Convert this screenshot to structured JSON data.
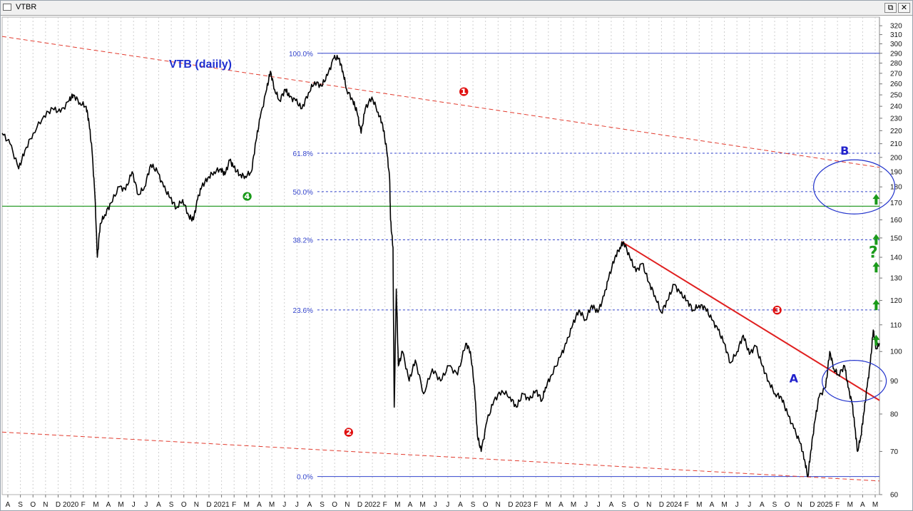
{
  "window": {
    "title": "VTBR",
    "restore_glyph": "⧉",
    "close_glyph": "✕"
  },
  "chart_data": {
    "type": "line",
    "title": "VTB (daiily)",
    "scale": "log",
    "ylim": [
      60,
      330
    ],
    "y_ticks": [
      60,
      70,
      80,
      90,
      100,
      110,
      120,
      130,
      140,
      150,
      160,
      170,
      180,
      190,
      200,
      210,
      220,
      230,
      240,
      250,
      260,
      270,
      280,
      290,
      300,
      310,
      320
    ],
    "x_ticks": [
      "A",
      "S",
      "O",
      "N",
      "D",
      "2020",
      "F",
      "M",
      "A",
      "M",
      "J",
      "J",
      "A",
      "S",
      "O",
      "N",
      "D",
      "2021",
      "F",
      "M",
      "A",
      "M",
      "J",
      "J",
      "A",
      "S",
      "O",
      "N",
      "D",
      "2022",
      "F",
      "M",
      "A",
      "M",
      "J",
      "J",
      "A",
      "S",
      "O",
      "N",
      "D",
      "2023",
      "F",
      "M",
      "A",
      "M",
      "J",
      "J",
      "A",
      "S",
      "O",
      "N",
      "D",
      "2024",
      "F",
      "M",
      "A",
      "M",
      "J",
      "J",
      "A",
      "S",
      "O",
      "N",
      "D",
      "2025",
      "F",
      "M",
      "A",
      "M"
    ],
    "x_range": [
      "2019-08-01",
      "2025-05-20"
    ],
    "grid": true,
    "series": [
      {
        "style": "price",
        "color": "#000000",
        "points": [
          [
            "2019-08-01",
            218
          ],
          [
            "2019-08-20",
            210
          ],
          [
            "2019-09-10",
            192
          ],
          [
            "2019-09-25",
            205
          ],
          [
            "2019-10-15",
            218
          ],
          [
            "2019-11-10",
            232
          ],
          [
            "2019-12-01",
            238
          ],
          [
            "2019-12-20",
            235
          ],
          [
            "2020-01-10",
            245
          ],
          [
            "2020-01-20",
            250
          ],
          [
            "2020-02-05",
            243
          ],
          [
            "2020-02-20",
            240
          ],
          [
            "2020-02-27",
            226
          ],
          [
            "2020-03-05",
            205
          ],
          [
            "2020-03-12",
            175
          ],
          [
            "2020-03-18",
            140
          ],
          [
            "2020-03-25",
            158
          ],
          [
            "2020-04-05",
            163
          ],
          [
            "2020-04-20",
            170
          ],
          [
            "2020-05-10",
            180
          ],
          [
            "2020-05-25",
            178
          ],
          [
            "2020-06-10",
            190
          ],
          [
            "2020-06-25",
            175
          ],
          [
            "2020-07-10",
            180
          ],
          [
            "2020-07-25",
            195
          ],
          [
            "2020-08-10",
            190
          ],
          [
            "2020-08-25",
            180
          ],
          [
            "2020-09-10",
            173
          ],
          [
            "2020-09-25",
            167
          ],
          [
            "2020-10-10",
            172
          ],
          [
            "2020-10-25",
            162
          ],
          [
            "2020-11-05",
            160
          ],
          [
            "2020-11-15",
            172
          ],
          [
            "2020-11-25",
            180
          ],
          [
            "2020-12-10",
            186
          ],
          [
            "2020-12-25",
            190
          ],
          [
            "2021-01-10",
            192
          ],
          [
            "2021-01-20",
            188
          ],
          [
            "2021-02-01",
            198
          ],
          [
            "2021-02-10",
            193
          ],
          [
            "2021-02-25",
            188
          ],
          [
            "2021-03-10",
            187
          ],
          [
            "2021-03-25",
            190
          ],
          [
            "2021-04-05",
            212
          ],
          [
            "2021-04-15",
            230
          ],
          [
            "2021-05-01",
            255
          ],
          [
            "2021-05-10",
            272
          ],
          [
            "2021-05-20",
            255
          ],
          [
            "2021-06-01",
            245
          ],
          [
            "2021-06-15",
            255
          ],
          [
            "2021-06-25",
            248
          ],
          [
            "2021-07-10",
            245
          ],
          [
            "2021-07-25",
            238
          ],
          [
            "2021-08-10",
            252
          ],
          [
            "2021-08-25",
            262
          ],
          [
            "2021-09-10",
            258
          ],
          [
            "2021-09-25",
            268
          ],
          [
            "2021-10-10",
            285
          ],
          [
            "2021-10-22",
            285
          ],
          [
            "2021-11-01",
            272
          ],
          [
            "2021-11-10",
            255
          ],
          [
            "2021-11-25",
            245
          ],
          [
            "2021-12-05",
            235
          ],
          [
            "2021-12-15",
            218
          ],
          [
            "2021-12-25",
            238
          ],
          [
            "2022-01-10",
            248
          ],
          [
            "2022-01-25",
            235
          ],
          [
            "2022-02-05",
            225
          ],
          [
            "2022-02-15",
            205
          ],
          [
            "2022-02-22",
            185
          ],
          [
            "2022-02-24",
            160
          ],
          [
            "2022-03-02",
            145
          ],
          [
            "2022-03-05",
            82
          ],
          [
            "2022-03-10",
            125
          ],
          [
            "2022-03-15",
            95
          ],
          [
            "2022-03-25",
            100
          ],
          [
            "2022-04-10",
            90
          ],
          [
            "2022-04-25",
            97
          ],
          [
            "2022-05-15",
            86
          ],
          [
            "2022-06-05",
            94
          ],
          [
            "2022-06-25",
            90
          ],
          [
            "2022-07-15",
            95
          ],
          [
            "2022-08-05",
            92
          ],
          [
            "2022-08-25",
            103
          ],
          [
            "2022-09-05",
            100
          ],
          [
            "2022-09-15",
            88
          ],
          [
            "2022-09-22",
            74
          ],
          [
            "2022-10-01",
            70
          ],
          [
            "2022-10-15",
            78
          ],
          [
            "2022-11-01",
            84
          ],
          [
            "2022-11-20",
            87
          ],
          [
            "2022-12-10",
            85
          ],
          [
            "2022-12-25",
            82
          ],
          [
            "2023-01-10",
            86
          ],
          [
            "2023-01-25",
            84
          ],
          [
            "2023-02-10",
            87
          ],
          [
            "2023-02-25",
            84
          ],
          [
            "2023-03-05",
            88
          ],
          [
            "2023-03-20",
            92
          ],
          [
            "2023-04-10",
            98
          ],
          [
            "2023-04-25",
            103
          ],
          [
            "2023-05-10",
            110
          ],
          [
            "2023-05-25",
            116
          ],
          [
            "2023-06-10",
            112
          ],
          [
            "2023-06-25",
            118
          ],
          [
            "2023-07-10",
            115
          ],
          [
            "2023-07-25",
            122
          ],
          [
            "2023-08-05",
            130
          ],
          [
            "2023-08-20",
            140
          ],
          [
            "2023-09-01",
            145
          ],
          [
            "2023-09-10",
            148
          ],
          [
            "2023-09-25",
            140
          ],
          [
            "2023-10-10",
            133
          ],
          [
            "2023-10-25",
            137
          ],
          [
            "2023-11-10",
            128
          ],
          [
            "2023-11-25",
            122
          ],
          [
            "2023-12-10",
            115
          ],
          [
            "2023-12-25",
            120
          ],
          [
            "2024-01-10",
            127
          ],
          [
            "2024-01-25",
            123
          ],
          [
            "2024-02-10",
            120
          ],
          [
            "2024-02-25",
            116
          ],
          [
            "2024-03-10",
            118
          ],
          [
            "2024-03-25",
            117
          ],
          [
            "2024-04-10",
            112
          ],
          [
            "2024-04-25",
            108
          ],
          [
            "2024-05-10",
            103
          ],
          [
            "2024-05-25",
            96
          ],
          [
            "2024-06-10",
            100
          ],
          [
            "2024-06-25",
            106
          ],
          [
            "2024-07-10",
            99
          ],
          [
            "2024-07-25",
            102
          ],
          [
            "2024-08-10",
            95
          ],
          [
            "2024-08-25",
            90
          ],
          [
            "2024-09-10",
            86
          ],
          [
            "2024-09-25",
            85
          ],
          [
            "2024-10-10",
            80
          ],
          [
            "2024-10-25",
            76
          ],
          [
            "2024-11-10",
            72
          ],
          [
            "2024-11-20",
            68
          ],
          [
            "2024-11-28",
            64
          ],
          [
            "2024-12-05",
            70
          ],
          [
            "2024-12-15",
            78
          ],
          [
            "2024-12-25",
            85
          ],
          [
            "2025-01-10",
            88
          ],
          [
            "2025-01-20",
            100
          ],
          [
            "2025-01-30",
            94
          ],
          [
            "2025-02-10",
            92
          ],
          [
            "2025-02-25",
            95
          ],
          [
            "2025-03-05",
            88
          ],
          [
            "2025-03-15",
            83
          ],
          [
            "2025-03-22",
            76
          ],
          [
            "2025-03-28",
            70
          ],
          [
            "2025-04-05",
            74
          ],
          [
            "2025-04-12",
            80
          ],
          [
            "2025-04-20",
            88
          ],
          [
            "2025-04-28",
            96
          ],
          [
            "2025-05-05",
            108
          ],
          [
            "2025-05-12",
            101
          ],
          [
            "2025-05-20",
            103
          ]
        ]
      }
    ],
    "fib_levels": [
      {
        "label": "100.0%",
        "value": 290
      },
      {
        "label": "61.8%",
        "value": 203
      },
      {
        "label": "50.0%",
        "value": 177
      },
      {
        "label": "38.2%",
        "value": 149
      },
      {
        "label": "23.6%",
        "value": 116
      },
      {
        "label": "0.0%",
        "value": 64
      }
    ],
    "fib_color": "#3344cc",
    "horizontal_support": {
      "value": 168,
      "color": "#2e9e2e"
    },
    "trendlines": [
      {
        "id": "upper-dashed",
        "style": "dashed",
        "color": "#e23b2e",
        "from": [
          "2019-08-01",
          308
        ],
        "to": [
          "2025-05-20",
          193
        ]
      },
      {
        "id": "lower-dashed",
        "style": "dashed",
        "color": "#e23b2e",
        "from": [
          "2019-08-01",
          75
        ],
        "to": [
          "2025-05-20",
          63
        ]
      },
      {
        "id": "descending-resistance",
        "style": "solid",
        "color": "#e02020",
        "from": [
          "2023-09-05",
          148
        ],
        "to": [
          "2025-05-20",
          84
        ]
      }
    ],
    "annotations": [
      {
        "text": "❶",
        "color": "#e01010",
        "at": [
          "2022-08-20",
          253
        ]
      },
      {
        "text": "❷",
        "color": "#e01010",
        "at": [
          "2021-11-15",
          75
        ]
      },
      {
        "text": "❸",
        "color": "#e01010",
        "at": [
          "2024-09-15",
          116
        ]
      },
      {
        "text": "❹",
        "color": "#1a9a1a",
        "at": [
          "2021-03-15",
          174
        ]
      },
      {
        "text": "A",
        "color": "#2222cc",
        "at": [
          "2024-10-25",
          91
        ]
      },
      {
        "text": "B",
        "color": "#2222cc",
        "at": [
          "2025-02-25",
          205
        ]
      },
      {
        "text": "?",
        "color": "#1a9a1a",
        "at": [
          "2025-05-05",
          142
        ]
      }
    ],
    "ellipses": [
      {
        "color": "#2233cc",
        "center": [
          "2025-03-20",
          90
        ]
      },
      {
        "color": "#2233cc",
        "center": [
          "2025-03-20",
          180
        ]
      }
    ],
    "target_arrows": {
      "color": "#1a9a1a",
      "values": [
        104,
        118,
        135,
        149,
        172
      ]
    }
  }
}
